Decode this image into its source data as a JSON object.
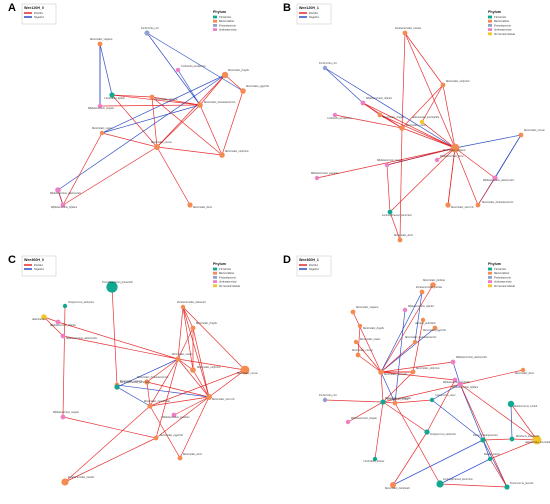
{
  "colors": {
    "positive": "#e41a1c",
    "negative": "#1f3fbf",
    "phylum": {
      "Firmicutes": "#11a891",
      "Bacteroidetes": "#f48b52",
      "Proteobacteria": "#8fa2d0",
      "Actinomycetota": "#ee7fc4",
      "Verrucomicrobiota": "#f2c52b"
    }
  },
  "panels": [
    {
      "id": "A",
      "legend": {
        "title": "Wee120H_0",
        "edge_entries": [
          "Positive",
          "Negative"
        ],
        "phylum_title": "Phylum",
        "phyla": [
          "Firmicutes",
          "Bacteroidetes",
          "Proteobacteria",
          "Actinomycetota"
        ]
      },
      "nodes": [
        {
          "label": "Bacteroides_vulgatus",
          "phylum": "Bacteroidetes"
        },
        {
          "label": "Escherichia_coli",
          "phylum": "Proteobacteria"
        },
        {
          "label": "Collinsella_aerofaciens",
          "phylum": "Actinomycetota"
        },
        {
          "label": "Bacteroides_fragilis",
          "phylum": "Bacteroidetes"
        },
        {
          "label": "Clostridium_leptum",
          "phylum": "Firmicutes"
        },
        {
          "label": "Bacteroides_stercoris",
          "phylum": "Bacteroidetes"
        },
        {
          "label": "Bifidobacterium_longum",
          "phylum": "Actinomycetota"
        },
        {
          "label": "Bacteroides_thetaiotaomicron",
          "phylum": "Bacteroidetes"
        },
        {
          "label": "Bacteroides_ovatus",
          "phylum": "Bacteroidetes"
        },
        {
          "label": "Bacteroides_caccae",
          "phylum": "Bacteroidetes"
        },
        {
          "label": "Bacteroides_uniformis",
          "phylum": "Bacteroidetes"
        },
        {
          "label": "Bacteroides_eggerthii",
          "phylum": "Bacteroidetes"
        },
        {
          "label": "Bifidobacterium_adolescentis",
          "phylum": "Actinomycetota"
        },
        {
          "label": "Bacteroides_dorei",
          "phylum": "Bacteroidetes"
        },
        {
          "label": "Bifidobacterium_bifidum",
          "phylum": "Actinomycetota"
        }
      ]
    },
    {
      "id": "B",
      "legend": {
        "title": "Wee120H_1",
        "edge_entries": [
          "Positive",
          "Negative"
        ],
        "phylum_title": "Phylum",
        "phyla": [
          "Firmicutes",
          "Bacteroidetes",
          "Proteobacteria",
          "Actinomycetota",
          "Verrucomicrobiota"
        ]
      },
      "nodes": [
        {
          "label": "Parabacteroides_merdae",
          "phylum": "Bacteroidetes"
        },
        {
          "label": "Escherichia_coli",
          "phylum": "Proteobacteria"
        },
        {
          "label": "Bacteroides_uniformis",
          "phylum": "Bacteroidetes"
        },
        {
          "label": "Bifidobacterium_infantis",
          "phylum": "Actinomycetota"
        },
        {
          "label": "Collinsella_aerofaciens",
          "phylum": "Actinomycetota"
        },
        {
          "label": "Bacteroides_fragilis",
          "phylum": "Bacteroidetes"
        },
        {
          "label": "Bacteroides_vulgatus",
          "phylum": "Bacteroidetes"
        },
        {
          "label": "Bacteroides_ovatus",
          "phylum": "Bacteroidetes"
        },
        {
          "label": "Bifidobacterium_longum",
          "phylum": "Actinomycetota"
        },
        {
          "label": "Bifidobacterium_pseudum",
          "phylum": "Actinomycetota"
        },
        {
          "label": "Bifidobacterium_breve",
          "phylum": "Actinomycetota"
        },
        {
          "label": "Bacteroides_caccae",
          "phylum": "Bacteroidetes"
        },
        {
          "label": "Lachnospiraceae_bacterium",
          "phylum": "Firmicutes"
        },
        {
          "label": "Bacteroides_stercoris",
          "phylum": "Bacteroidetes"
        },
        {
          "label": "Bifidobacterium_adolescentis",
          "phylum": "Actinomycetota"
        },
        {
          "label": "Bacteroides_thetaiotaomicron",
          "phylum": "Bacteroidetes"
        },
        {
          "label": "Akkermansia_muciniphila",
          "phylum": "Verrucomicrobiota"
        },
        {
          "label": "Bacteroides_dorei",
          "phylum": "Bacteroidetes"
        }
      ]
    },
    {
      "id": "C",
      "legend": {
        "title": "Wee360H_0",
        "edge_entries": [
          "Positive",
          "Negative"
        ],
        "phylum_title": "Phylum",
        "phyla": [
          "Firmicutes",
          "Bacteroidetes",
          "Proteobacteria",
          "Actinomycetota",
          "Verrucomicrobiota"
        ]
      },
      "nodes": [
        {
          "label": "Faecalibacterium_prausnitzii",
          "phylum": "Firmicutes"
        },
        {
          "label": "Parabacteroides_distasonis",
          "phylum": "Bacteroidetes"
        },
        {
          "label": "Streptococcus_salivarius",
          "phylum": "Firmicutes"
        },
        {
          "label": "Bacteroides_fragilis",
          "phylum": "Bacteroidetes"
        },
        {
          "label": "Bifidobacterium_infantis",
          "phylum": "Actinomycetota"
        },
        {
          "label": "Bifidobacterium_adolescentis",
          "phylum": "Actinomycetota"
        },
        {
          "label": "Akkermansia",
          "phylum": "Verrucomicrobiota"
        },
        {
          "label": "Bacteroides_uniformis",
          "phylum": "Bacteroidetes"
        },
        {
          "label": "Bacteroides_thetaiotaomicron",
          "phylum": "Bacteroidetes"
        },
        {
          "label": "Bacteroides_ovatus",
          "phylum": "Bacteroidetes"
        },
        {
          "label": "Bacteroides_vulgatus",
          "phylum": "Bacteroidetes"
        },
        {
          "label": "Lachnospiraceae_bacterium",
          "phylum": "Firmicutes"
        },
        {
          "label": "Bacteroides_caccae",
          "phylum": "Bacteroidetes"
        },
        {
          "label": "Bacteroides_stercoris",
          "phylum": "Bacteroidetes"
        },
        {
          "label": "Bifidobacterium_pseudum",
          "phylum": "Actinomycetota"
        },
        {
          "label": "Bacteroides_eggerthii",
          "phylum": "Bacteroidetes"
        },
        {
          "label": "Bifidobacterium_longum",
          "phylum": "Actinomycetota"
        },
        {
          "label": "Bacteroides_massiliensis",
          "phylum": "Bacteroidetes"
        },
        {
          "label": "Bacteroides_dorei",
          "phylum": "Bacteroidetes"
        },
        {
          "label": "Parabacteroides_merdae",
          "phylum": "Bacteroidetes"
        }
      ]
    },
    {
      "id": "D",
      "legend": {
        "title": "Wee360H_1",
        "edge_entries": [
          "Positive",
          "Negative"
        ],
        "phylum_title": "Phylum",
        "phyla": [
          "Firmicutes",
          "Bacteroidetes",
          "Proteobacteria",
          "Actinomycetota",
          "Verrucomicrobiota"
        ]
      },
      "nodes": [
        {
          "label": "Bacteroides_plebeius",
          "phylum": "Bacteroidetes"
        },
        {
          "label": "Parabacteroides_merdae",
          "phylum": "Bacteroidetes"
        },
        {
          "label": "Bifidobacterium_infantis",
          "phylum": "Actinomycetota"
        },
        {
          "label": "Bacteroides_vulgatus",
          "phylum": "Bacteroidetes"
        },
        {
          "label": "Alistipes_putredinis",
          "phylum": "Bacteroidetes"
        },
        {
          "label": "Bacteroides_fragilis",
          "phylum": "Bacteroidetes"
        },
        {
          "label": "Bacteroides_eggerthii",
          "phylum": "Bacteroidetes"
        },
        {
          "label": "Bacteroides_ovatus",
          "phylum": "Bacteroidetes"
        },
        {
          "label": "Bacteroides_thetaiotaomicron",
          "phylum": "Bacteroidetes"
        },
        {
          "label": "Bacteroides_caccae",
          "phylum": "Bacteroidetes"
        },
        {
          "label": "Bacteroides_uniformis",
          "phylum": "Bacteroidetes"
        },
        {
          "label": "Bifidobacterium_adolescentis",
          "phylum": "Actinomycetota"
        },
        {
          "label": "Bacteroides_dorei",
          "phylum": "Bacteroidetes"
        },
        {
          "label": "Bacteroides_stercoris",
          "phylum": "Bacteroidetes"
        },
        {
          "label": "Bifidobacterium_animalis",
          "phylum": "Actinomycetota"
        },
        {
          "label": "Eubacterium_rectale",
          "phylum": "Firmicutes"
        },
        {
          "label": "Bacteroides_massiliensis",
          "phylum": "Bacteroidetes"
        },
        {
          "label": "Escherichia_coli",
          "phylum": "Proteobacteria"
        },
        {
          "label": "Bifidobacterium_longum",
          "phylum": "Actinomycetota"
        },
        {
          "label": "Coprococcus_catus",
          "phylum": "Firmicutes"
        },
        {
          "label": "Bifidobacterium_bifidum",
          "phylum": "Actinomycetota"
        },
        {
          "label": "Ruminococcus_bromii",
          "phylum": "Firmicutes"
        },
        {
          "label": "Akkermansia_muciniphila",
          "phylum": "Verrucomicrobiota"
        },
        {
          "label": "Roseburia_intestinalis",
          "phylum": "Firmicutes"
        },
        {
          "label": "Dorea_formicigenerans",
          "phylum": "Firmicutes"
        },
        {
          "label": "Blautia_obeum",
          "phylum": "Firmicutes"
        },
        {
          "label": "Enterococcus_faecalis",
          "phylum": "Firmicutes"
        },
        {
          "label": "Lachnospiraceae_bacterium",
          "phylum": "Firmicutes"
        },
        {
          "label": "Bacteroides_intestinalis",
          "phylum": "Bacteroidetes"
        },
        {
          "label": "Streptococcus_salivarius",
          "phylum": "Firmicutes"
        },
        {
          "label": "Clostridium_bolteae",
          "phylum": "Firmicutes"
        }
      ]
    }
  ]
}
